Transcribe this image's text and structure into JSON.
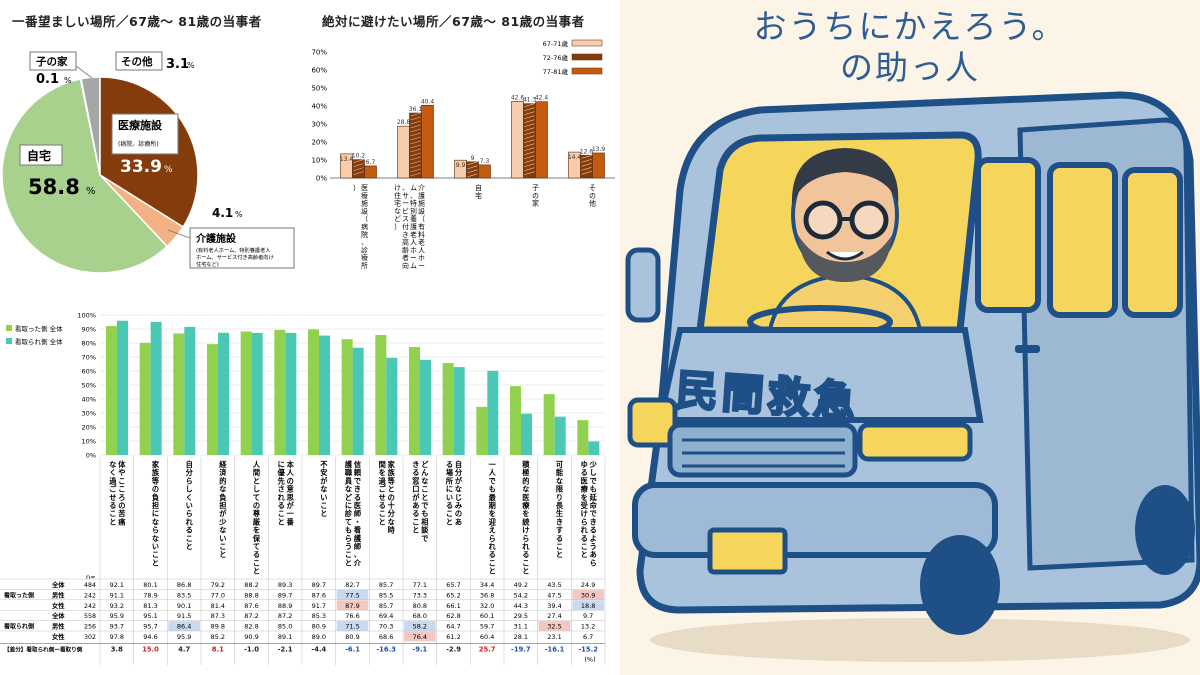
{
  "pie": {
    "title": "一番望ましい場所／67歳〜 81歳の当事者",
    "labels": {
      "home": "自宅",
      "home_pct": "58.8",
      "medical": "医療施設",
      "medical_sub": "(病院、診療所)",
      "medical_pct": "33.9",
      "care": "介護施設",
      "care_sub1": "(有料老人ホーム、特別養護老人",
      "care_sub2": "ホーム、サービス付き高齢者向け",
      "care_sub3": "住宅など)",
      "care_pct": "4.1",
      "child": "子の家",
      "child_pct": "0.1",
      "other": "その他",
      "other_pct": "3.1",
      "pct_sign": "%"
    },
    "colors": {
      "home": "#a9d18e",
      "medical": "#843c0c",
      "care": "#f4b183",
      "child": "#9dc3e6",
      "other": "#a6a6a6"
    }
  },
  "bar2": {
    "title": "絶対に避けたい場所／67歳〜 81歳の当事者",
    "cat_labels": [
      "医療施設（病院、診療所）",
      "介護施設（有料老人ホーム、特別養護老人ホーム、サービス付き高齢者向け住宅など）",
      "自宅",
      "子の家",
      "その他"
    ],
    "colors": [
      "#f8cbad",
      "#843c0c",
      "#c55a11"
    ]
  },
  "bar3": {
    "legend": [
      "看取った側 全体",
      "看取られ側 全体"
    ],
    "categories": [
      "体やこころの苦痛なく過ごせること",
      "家族等の負担にならないこと",
      "自分らしくいられること",
      "経済的な負担が少ないこと",
      "人間としての尊厳を保てること",
      "本人の意思が一番に優先されること",
      "不安がないこと",
      "信頼できる医師・看護師、介護職員などに診てもらうこと",
      "家族等との十分な時間を過ごせること",
      "どんなことでも相談できる窓口があること",
      "自分がなじみのある場所にいること",
      "一人でも最期を迎えられること",
      "積極的な医療を続けられること",
      "可能な限り長生きすること",
      "少しでも延命できるようあらゆる医療を受けられること"
    ],
    "n_label": "n=",
    "row_groups": [
      "看取った側",
      "看取られ側"
    ],
    "row_labels": [
      "全体",
      "男性",
      "女性",
      "全体",
      "男性",
      "女性"
    ],
    "n_values": [
      "484",
      "242",
      "242",
      "558",
      "256",
      "302"
    ],
    "rows": [
      [
        "92.1",
        "80.1",
        "86.8",
        "79.2",
        "88.2",
        "89.3",
        "89.7",
        "82.7",
        "85.7",
        "77.1",
        "65.7",
        "34.4",
        "49.2",
        "43.5",
        "24.9"
      ],
      [
        "91.1",
        "78.9",
        "83.5",
        "77.0",
        "88.8",
        "89.7",
        "87.6",
        "77.5",
        "85.5",
        "73.3",
        "65.2",
        "36.8",
        "54.2",
        "47.5",
        "30.9"
      ],
      [
        "93.2",
        "81.3",
        "90.1",
        "81.4",
        "87.6",
        "88.9",
        "91.7",
        "87.9",
        "85.7",
        "80.8",
        "66.1",
        "32.0",
        "44.3",
        "39.4",
        "18.8"
      ],
      [
        "95.9",
        "95.1",
        "91.5",
        "87.3",
        "87.2",
        "87.2",
        "85.3",
        "76.6",
        "69.4",
        "68.0",
        "62.8",
        "60.1",
        "29.5",
        "27.4",
        "9.7"
      ],
      [
        "93.7",
        "95.7",
        "86.4",
        "89.8",
        "82.8",
        "85.0",
        "80.9",
        "71.5",
        "70.3",
        "58.2",
        "64.7",
        "59.7",
        "31.1",
        "32.5",
        "13.2"
      ],
      [
        "97.8",
        "94.6",
        "95.9",
        "85.2",
        "90.9",
        "89.1",
        "89.0",
        "80.9",
        "68.6",
        "76.4",
        "61.2",
        "60.4",
        "28.1",
        "23.1",
        "6.7"
      ]
    ],
    "diff_label": "【差分】看取られ側ー看取り側",
    "diff": [
      "3.8",
      "15.0",
      "4.7",
      "8.1",
      "-1.0",
      "-2.1",
      "-4.4",
      "-6.1",
      "-16.3",
      "-9.1",
      "-2.9",
      "25.7",
      "-19.7",
      "-16.1",
      "-15.2"
    ],
    "pct_unit": "(%)",
    "colors": {
      "taker": "#92d050",
      "taken": "#4bc8b4"
    }
  },
  "illustration": {
    "headline_1": "おうちにかえろう。",
    "headline_2": "の助っ人",
    "van_text": "民間救急",
    "colors": {
      "van": "#a9c3dc",
      "outline": "#1e4f86",
      "window": "#f6d55c",
      "bg": "#fbf4e7",
      "headline": "#2f5d92"
    }
  },
  "chart_data": [
    {
      "type": "pie",
      "title": "一番望ましい場所／67歳〜 81歳の当事者",
      "categories": [
        "自宅",
        "医療施設",
        "介護施設",
        "子の家",
        "その他"
      ],
      "values": [
        58.8,
        33.9,
        4.1,
        0.1,
        3.1
      ],
      "unit": "%"
    },
    {
      "type": "bar",
      "title": "絶対に避けたい場所／67歳〜 81歳の当事者",
      "categories": [
        "医療施設",
        "介護施設",
        "自宅",
        "子の家",
        "その他"
      ],
      "series": [
        {
          "name": "67-71歳",
          "values": [
            13.4,
            28.8,
            9.9,
            42.6,
            14.4
          ]
        },
        {
          "name": "72-76歳",
          "values": [
            10.2,
            36.1,
            9.0,
            41.3,
            12.6
          ]
        },
        {
          "name": "77-81歳",
          "values": [
            6.7,
            40.4,
            7.3,
            42.4,
            13.9
          ]
        }
      ],
      "yticks": [
        "0%",
        "10%",
        "20%",
        "30%",
        "40%",
        "50%",
        "60%",
        "70%"
      ],
      "ylim": [
        0,
        70
      ],
      "legend": "top-right",
      "grid": false
    },
    {
      "type": "bar",
      "categories": [
        "体やこころの苦痛なく過ごせること",
        "家族等の負担にならないこと",
        "自分らしくいられること",
        "経済的な負担が少ないこと",
        "人間としての尊厳を保てること",
        "本人の意思が一番に優先されること",
        "不安がないこと",
        "信頼できる医師・看護師、介護職員などに診てもらうこと",
        "家族等との十分な時間を過ごせること",
        "どんなことでも相談できる窓口があること",
        "自分がなじみのある場所にいること",
        "一人でも最期を迎えられること",
        "積極的な医療を続けられること",
        "可能な限り長生きすること",
        "少しでも延命できるようあらゆる医療を受けられること"
      ],
      "series": [
        {
          "name": "看取った側 全体",
          "values": [
            92.1,
            80.1,
            86.8,
            79.2,
            88.2,
            89.3,
            89.7,
            82.7,
            85.7,
            77.1,
            65.7,
            34.4,
            49.2,
            43.5,
            24.9
          ]
        },
        {
          "name": "看取られ側 全体",
          "values": [
            95.9,
            95.1,
            91.5,
            87.3,
            87.2,
            87.2,
            85.3,
            76.6,
            69.4,
            68.0,
            62.8,
            60.1,
            29.5,
            27.4,
            9.7
          ]
        }
      ],
      "yticks": [
        "0%",
        "10%",
        "20%",
        "30%",
        "40%",
        "50%",
        "60%",
        "70%",
        "80%",
        "90%",
        "100%"
      ],
      "ylim": [
        0,
        100
      ],
      "legend": "top-left",
      "grid": true
    }
  ]
}
